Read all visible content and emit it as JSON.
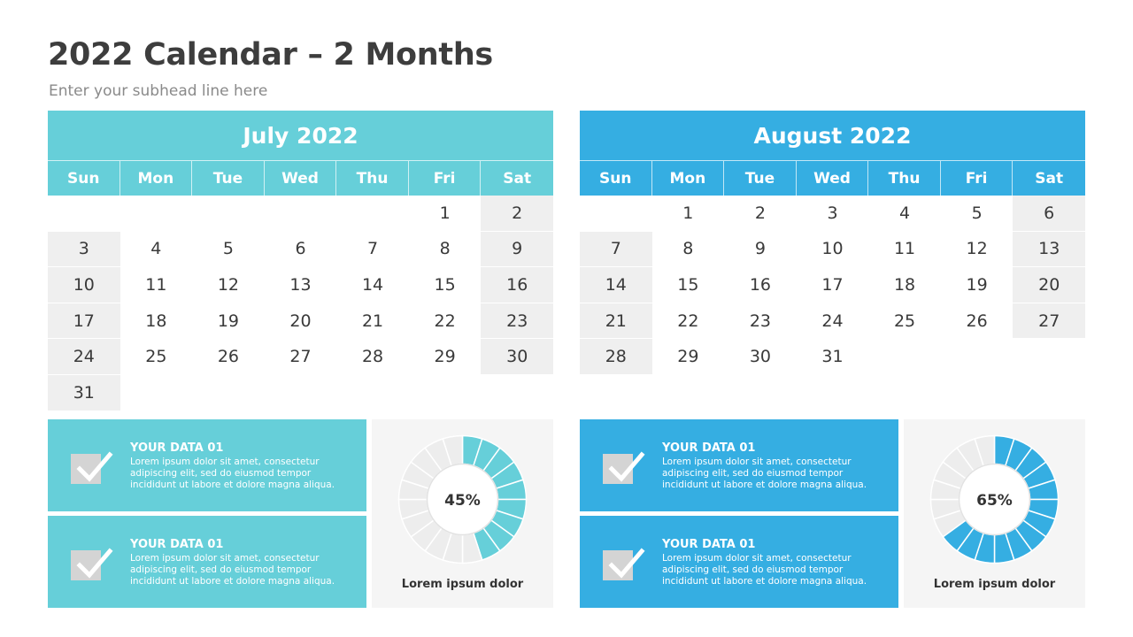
{
  "title": "2022 Calendar – 2 Months",
  "subtitle": "Enter your subhead line here",
  "calendars": [
    {
      "month": "July 2022",
      "color": "#66cfd9",
      "weekdays": [
        "Sun",
        "Mon",
        "Tue",
        "Wed",
        "Thu",
        "Fri",
        "Sat"
      ],
      "first_weekday": 5,
      "days_in_month": 31
    },
    {
      "month": "August 2022",
      "color": "#35aee2",
      "weekdays": [
        "Sun",
        "Mon",
        "Tue",
        "Wed",
        "Thu",
        "Fri",
        "Sat"
      ],
      "first_weekday": 1,
      "days_in_month": 31
    }
  ],
  "cards": [
    {
      "title": "YOUR DATA 01",
      "body": "Lorem ipsum dolor sit amet, consectetur adipiscing elit, sed do eiusmod tempor incididunt ut labore et dolore magna aliqua."
    },
    {
      "title": "YOUR DATA 01",
      "body": "Lorem ipsum dolor sit amet, consectetur adipiscing elit, sed do eiusmod tempor incididunt ut labore et dolore magna aliqua."
    },
    {
      "title": "YOUR DATA 01",
      "body": "Lorem ipsum dolor sit amet, consectetur adipiscing elit, sed do eiusmod tempor incididunt ut labore et dolore magna aliqua."
    },
    {
      "title": "YOUR DATA 01",
      "body": "Lorem ipsum dolor sit amet, consectetur adipiscing elit, sed do eiusmod tempor incididunt ut labore et dolore magna aliqua."
    }
  ],
  "donuts": [
    {
      "value": 45,
      "value_label": "45%",
      "label": "Lorem ipsum dolor",
      "color": "#66cfd9"
    },
    {
      "value": 65,
      "value_label": "65%",
      "label": "Lorem ipsum dolor",
      "color": "#35aee2"
    }
  ],
  "icons": {
    "card_icon": "checkbox-check-icon"
  }
}
